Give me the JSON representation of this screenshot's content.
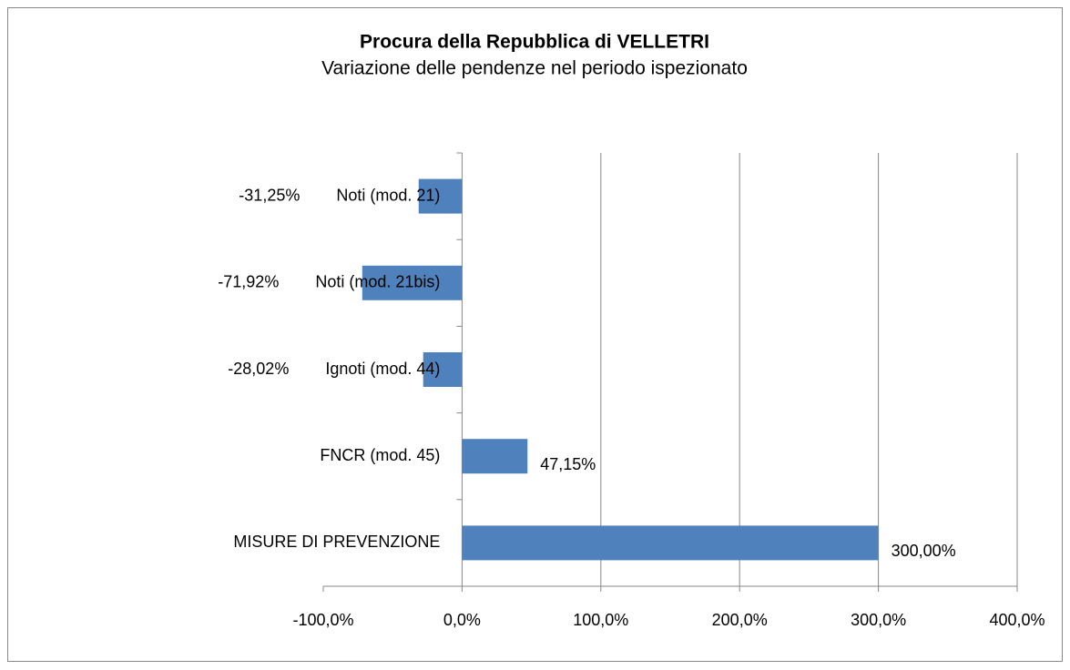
{
  "chart_data": {
    "type": "bar",
    "orientation": "horizontal",
    "title": "Procura della Repubblica di VELLETRI",
    "subtitle": "Variazione delle pendenze nel periodo ispezionato",
    "categories": [
      "Noti (mod. 21)",
      "Noti (mod. 21bis)",
      "Ignoti (mod. 44)",
      "FNCR (mod. 45)",
      "MISURE DI PREVENZIONE"
    ],
    "values": [
      -31.25,
      -71.92,
      -28.02,
      47.15,
      300.0
    ],
    "value_labels": [
      "-31,25%",
      "-71,92%",
      "-28,02%",
      "47,15%",
      "300,00%"
    ],
    "color": "#4f81bd",
    "xlim": [
      -100,
      400
    ],
    "xticks": [
      {
        "value": -100,
        "label": "-100,0%"
      },
      {
        "value": 0,
        "label": "0,0%"
      },
      {
        "value": 100,
        "label": "100,0%"
      },
      {
        "value": 200,
        "label": "200,0%"
      },
      {
        "value": 300,
        "label": "300,0%"
      },
      {
        "value": 400,
        "label": "400,0%"
      }
    ],
    "grid": true
  }
}
